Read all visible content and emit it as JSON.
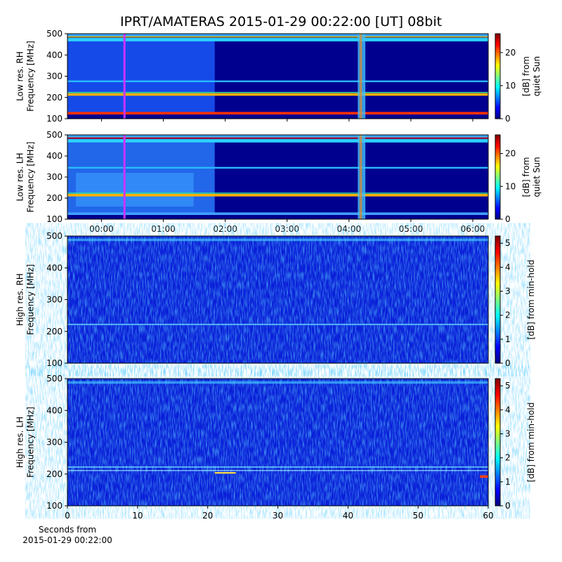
{
  "chart_data": [
    {
      "type": "heatmap",
      "title": "IPRT/AMATERAS 2015-01-29 00:22:00 [UT]   08bit",
      "ylabel": [
        "Low res. RH",
        "Frequency [MHz]"
      ],
      "ylim": [
        100,
        500
      ],
      "yticks": [
        100,
        200,
        300,
        400,
        500
      ],
      "xlim": [
        -33,
        375
      ],
      "colorbar": {
        "label": [
          "[dB] from",
          "quiet Sun"
        ],
        "lim": [
          0,
          25.7
        ],
        "ticks": [
          0,
          10,
          20
        ]
      }
    },
    {
      "type": "heatmap",
      "ylabel": [
        "Low res. LH",
        "Frequency [MHz]"
      ],
      "ylim": [
        100,
        500
      ],
      "yticks": [
        100,
        200,
        300,
        400,
        500
      ],
      "xlim": [
        -33,
        375
      ],
      "xticks": [
        {
          "value": 0,
          "label": "00:00"
        },
        {
          "value": 60,
          "label": "01:00"
        },
        {
          "value": 120,
          "label": "02:00"
        },
        {
          "value": 180,
          "label": "03:00"
        },
        {
          "value": 240,
          "label": "04:00"
        },
        {
          "value": 300,
          "label": "05:00"
        },
        {
          "value": 360,
          "label": "06:00"
        }
      ],
      "colorbar": {
        "label": [
          "[dB] from",
          "quiet Sun"
        ],
        "lim": [
          0,
          25.7
        ],
        "ticks": [
          0,
          10,
          20
        ]
      }
    },
    {
      "type": "heatmap",
      "ylabel": [
        "High res. RH",
        "Frequency [MHz]"
      ],
      "ylim": [
        100,
        500
      ],
      "yticks": [
        100,
        200,
        300,
        400,
        500
      ],
      "xlim": [
        0,
        60
      ],
      "colorbar": {
        "label": [
          "[dB] from min-hold"
        ],
        "lim": [
          0,
          5.3
        ],
        "ticks": [
          0,
          1,
          2,
          3,
          4,
          5
        ]
      }
    },
    {
      "type": "heatmap",
      "ylabel": [
        "High res. LH",
        "Frequency [MHz]"
      ],
      "ylim": [
        100,
        500
      ],
      "yticks": [
        100,
        200,
        300,
        400,
        500
      ],
      "xlim": [
        0,
        60
      ],
      "xticks": [
        0,
        10,
        20,
        30,
        40,
        50,
        60
      ],
      "xlabel": [
        "Seconds from",
        "2015-01-29 00:22:00"
      ],
      "colorbar": {
        "label": [
          "[dB] from min-hold"
        ],
        "lim": [
          0,
          5.3
        ],
        "ticks": [
          0,
          1,
          2,
          3,
          4,
          5
        ]
      }
    }
  ]
}
